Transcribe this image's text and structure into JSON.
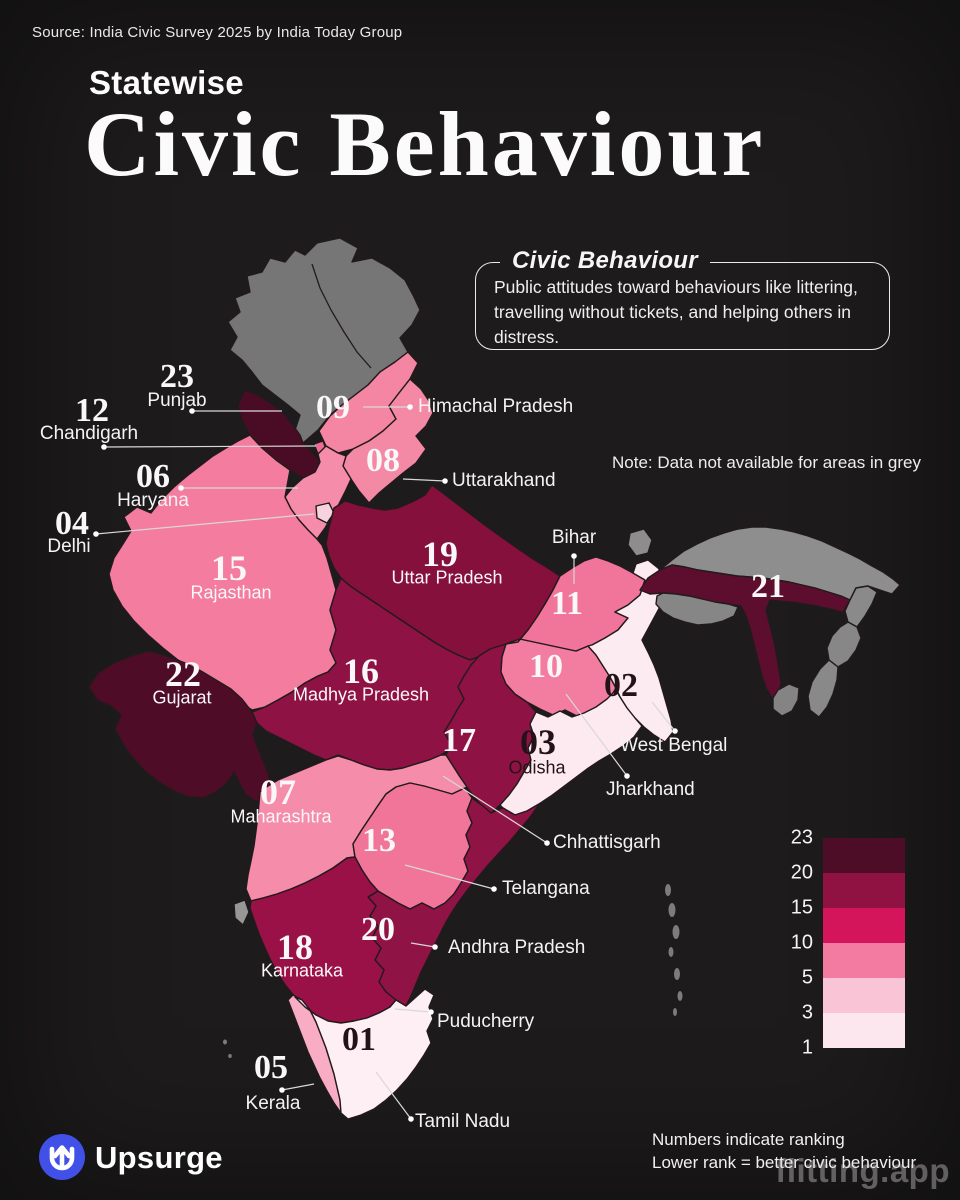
{
  "header": {
    "source": "Source: India Civic Survey 2025 by India Today Group",
    "kicker": "Statewise",
    "title": "Civic Behaviour"
  },
  "info_box": {
    "title": "Civic Behaviour",
    "body": "Public attitudes toward behaviours like littering, travelling without tickets, and helping others in distress."
  },
  "note": "Note: Data not available for areas in grey",
  "legend": {
    "ticks": [
      "23",
      "20",
      "15",
      "10",
      "5",
      "3",
      "1"
    ],
    "band_colors": [
      "#4e0d26",
      "#8f1242",
      "#d4155c",
      "#f37aa0",
      "#f9c4d5",
      "#fce7ee"
    ]
  },
  "footer": {
    "brand": "Upsurge",
    "note_line1": "Numbers indicate ranking",
    "note_line2": "Lower rank = better civic behaviour",
    "watermark": "flitting.app",
    "logo_color": "#4150e6"
  },
  "chart_data": {
    "type": "choropleth_map",
    "title": "Statewise Civic Behaviour",
    "source": "India Civic Survey 2025 by India Today Group",
    "metric": "Civic behaviour ranking",
    "note": "Numbers indicate ranking; lower rank = better civic behaviour; data not available for areas in grey",
    "legend_ticks": [
      23,
      20,
      15,
      10,
      5,
      3,
      1
    ],
    "rankings": [
      {
        "rank": 1,
        "state": "Tamil Nadu"
      },
      {
        "rank": 2,
        "state": "West Bengal"
      },
      {
        "rank": 3,
        "state": "Odisha"
      },
      {
        "rank": 4,
        "state": "Delhi"
      },
      {
        "rank": 5,
        "state": "Kerala"
      },
      {
        "rank": 6,
        "state": "Haryana"
      },
      {
        "rank": 7,
        "state": "Maharashtra"
      },
      {
        "rank": 8,
        "state": "Uttarakhand"
      },
      {
        "rank": 9,
        "state": "Himachal Pradesh"
      },
      {
        "rank": 10,
        "state": "Jharkhand"
      },
      {
        "rank": 11,
        "state": "Bihar"
      },
      {
        "rank": 12,
        "state": "Chandigarh"
      },
      {
        "rank": 13,
        "state": "Telangana"
      },
      {
        "rank": 15,
        "state": "Rajasthan"
      },
      {
        "rank": 16,
        "state": "Madhya Pradesh"
      },
      {
        "rank": 17,
        "state": "Chhattisgarh"
      },
      {
        "rank": 18,
        "state": "Karnataka"
      },
      {
        "rank": 19,
        "state": "Uttar Pradesh"
      },
      {
        "rank": 20,
        "state": "Andhra Pradesh"
      },
      {
        "rank": 21,
        "state": "Assam"
      },
      {
        "rank": 22,
        "state": "Gujarat"
      },
      {
        "rank": 23,
        "state": "Punjab"
      }
    ],
    "no_data_regions": [
      "Jammu & Kashmir / Ladakh",
      "Sikkim",
      "Arunachal Pradesh",
      "Meghalaya",
      "Nagaland",
      "Manipur",
      "Mizoram",
      "Tripura",
      "Goa",
      "Andaman & Nicobar Islands",
      "Lakshadweep"
    ]
  },
  "map": {
    "stroke": "#231a1d",
    "leader_color": "#d9d7d8",
    "regions": [
      {
        "id": "jammu_kashmir",
        "name": "Jammu & Kashmir / Ladakh",
        "fill": "#767676",
        "no_data": true
      },
      {
        "id": "punjab",
        "name": "Punjab",
        "rank": "23",
        "fill": "#4a0c24"
      },
      {
        "id": "himachal",
        "name": "Himachal Pradesh",
        "rank": "09",
        "fill": "#f486a4"
      },
      {
        "id": "chandigarh",
        "name": "Chandigarh",
        "rank": "12",
        "fill": "#ef6b92"
      },
      {
        "id": "uttarakhand",
        "name": "Uttarakhand",
        "rank": "08",
        "fill": "#f489a6"
      },
      {
        "id": "haryana",
        "name": "Haryana",
        "rank": "06",
        "fill": "#f58caa"
      },
      {
        "id": "delhi",
        "name": "Delhi",
        "rank": "04",
        "fill": "#f8d3de"
      },
      {
        "id": "rajasthan",
        "name": "Rajasthan",
        "rank": "15",
        "fill": "#f37c9f"
      },
      {
        "id": "uttar_pradesh",
        "name": "Uttar Pradesh",
        "rank": "19",
        "fill": "#85103c"
      },
      {
        "id": "madhya_pradesh",
        "name": "Madhya Pradesh",
        "rank": "16",
        "fill": "#8e1243"
      },
      {
        "id": "gujarat",
        "name": "Gujarat",
        "rank": "22",
        "fill": "#4e0c26"
      },
      {
        "id": "chhattisgarh",
        "name": "Chhattisgarh",
        "rank": "17",
        "fill": "#8e1243"
      },
      {
        "id": "jharkhand",
        "name": "Jharkhand",
        "rank": "10",
        "fill": "#f37da0"
      },
      {
        "id": "bihar",
        "name": "Bihar",
        "rank": "11",
        "fill": "#f1749a"
      },
      {
        "id": "west_bengal",
        "name": "West Bengal",
        "rank": "02",
        "fill": "#fcebf1"
      },
      {
        "id": "sikkim",
        "name": "Sikkim",
        "fill": "#8d8d8d",
        "no_data": true
      },
      {
        "id": "odisha",
        "name": "Odisha",
        "rank": "03",
        "fill": "#fceaf0"
      },
      {
        "id": "maharashtra",
        "name": "Maharashtra",
        "rank": "07",
        "fill": "#f48caa"
      },
      {
        "id": "telangana",
        "name": "Telangana",
        "rank": "13",
        "fill": "#f17598"
      },
      {
        "id": "andhra_pradesh",
        "name": "Andhra Pradesh",
        "rank": "20",
        "fill": "#901345"
      },
      {
        "id": "karnataka",
        "name": "Karnataka",
        "rank": "18",
        "fill": "#9a1148"
      },
      {
        "id": "goa",
        "name": "Goa",
        "fill": "#979797",
        "no_data": true
      },
      {
        "id": "kerala",
        "name": "Kerala",
        "rank": "05",
        "fill": "#f8adc5"
      },
      {
        "id": "tamil_nadu",
        "name": "Tamil Nadu",
        "rank": "01",
        "fill": "#fdeff4"
      },
      {
        "id": "arunachal",
        "name": "Arunachal Pradesh",
        "fill": "#8e8e8e",
        "no_data": true
      },
      {
        "id": "assam",
        "name": "Assam",
        "rank": "21",
        "fill": "#5d0e2f"
      },
      {
        "id": "meghalaya",
        "name": "Meghalaya",
        "fill": "#868686",
        "no_data": true
      },
      {
        "id": "nagaland",
        "name": "Nagaland",
        "fill": "#8a8a8a",
        "no_data": true
      },
      {
        "id": "manipur",
        "name": "Manipur",
        "fill": "#878787",
        "no_data": true
      },
      {
        "id": "mizoram",
        "name": "Mizoram",
        "fill": "#898989",
        "no_data": true
      },
      {
        "id": "tripura",
        "name": "Tripura",
        "fill": "#848484",
        "no_data": true
      }
    ],
    "state_labels": [
      {
        "id": "himachal",
        "num": "09"
      },
      {
        "id": "uttarakhand",
        "num": "08"
      },
      {
        "id": "rajasthan",
        "num": "15",
        "name": "Rajasthan"
      },
      {
        "id": "uttar_pradesh",
        "num": "19",
        "name": "Uttar Pradesh"
      },
      {
        "id": "bihar",
        "num": "11"
      },
      {
        "id": "jharkhand",
        "num": "10"
      },
      {
        "id": "west_bengal",
        "num": "02",
        "dark": true
      },
      {
        "id": "assam",
        "num": "21"
      },
      {
        "id": "madhya_pradesh",
        "num": "16",
        "name": "Madhya Pradesh"
      },
      {
        "id": "gujarat",
        "num": "22",
        "name": "Gujarat"
      },
      {
        "id": "chhattisgarh",
        "num": "17"
      },
      {
        "id": "odisha",
        "num": "03",
        "name": "Odisha",
        "dark": true
      },
      {
        "id": "maharashtra",
        "num": "07",
        "name": "Maharashtra"
      },
      {
        "id": "telangana",
        "num": "13"
      },
      {
        "id": "andhra_pradesh",
        "num": "20"
      },
      {
        "id": "karnataka",
        "num": "18",
        "name": "Karnataka"
      },
      {
        "id": "tamil_nadu",
        "num": "01",
        "dark": true
      }
    ],
    "callouts": [
      {
        "id": "punjab",
        "num": "23",
        "name": "Punjab"
      },
      {
        "id": "chandigarh",
        "num": "12",
        "name": "Chandigarh"
      },
      {
        "id": "haryana",
        "num": "06",
        "name": "Haryana"
      },
      {
        "id": "delhi",
        "num": "04",
        "name": "Delhi"
      },
      {
        "id": "kerala",
        "num": "05",
        "name": "Kerala"
      },
      {
        "id": "himachal",
        "name": "Himachal Pradesh"
      },
      {
        "id": "uttarakhand",
        "name": "Uttarakhand"
      },
      {
        "id": "bihar",
        "name": "Bihar"
      },
      {
        "id": "west_bengal",
        "name": "West Bengal"
      },
      {
        "id": "jharkhand",
        "name": "Jharkhand"
      },
      {
        "id": "chhattisgarh",
        "name": "Chhattisgarh"
      },
      {
        "id": "telangana",
        "name": "Telangana"
      },
      {
        "id": "andhra_pradesh",
        "name": "Andhra Pradesh"
      },
      {
        "id": "puducherry",
        "name": "Puducherry"
      },
      {
        "id": "tamil_nadu",
        "name": "Tamil Nadu"
      }
    ]
  }
}
